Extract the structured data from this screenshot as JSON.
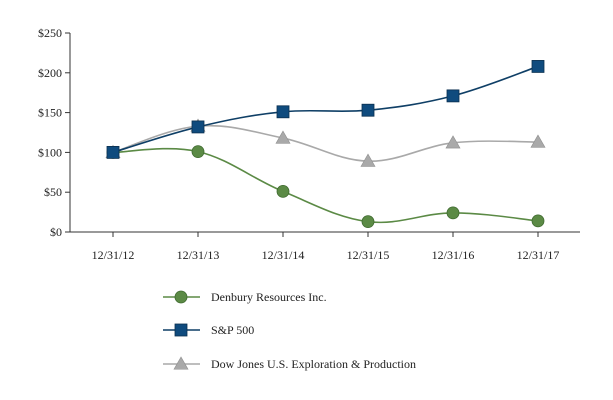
{
  "chart_data": {
    "type": "line",
    "title": "",
    "xlabel": "",
    "ylabel": "",
    "categories": [
      "12/31/12",
      "12/31/13",
      "12/31/14",
      "12/31/15",
      "12/31/16",
      "12/31/17"
    ],
    "ylim": [
      0,
      250
    ],
    "yticks": [
      0,
      50,
      100,
      150,
      200,
      250
    ],
    "ytick_labels": [
      "$0",
      "$50",
      "$100",
      "$150",
      "$200",
      "$250"
    ],
    "grid": false,
    "legend_position": "bottom",
    "series": [
      {
        "name": "Denbury Resources Inc.",
        "marker": "circle",
        "color": "#5b8a45",
        "marker_color": "#5b8a45",
        "values": [
          100,
          101,
          51,
          13,
          24,
          14
        ]
      },
      {
        "name": "S&P 500",
        "marker": "square",
        "color": "#0f3f66",
        "marker_color": "#0f4b7e",
        "values": [
          100,
          132,
          151,
          153,
          171,
          208
        ]
      },
      {
        "name": "Dow Jones U.S. Exploration & Production",
        "marker": "triangle",
        "color": "#a9a9a9",
        "marker_color": "#a9a9a9",
        "values": [
          100,
          133,
          118,
          89,
          112,
          113
        ]
      }
    ]
  }
}
